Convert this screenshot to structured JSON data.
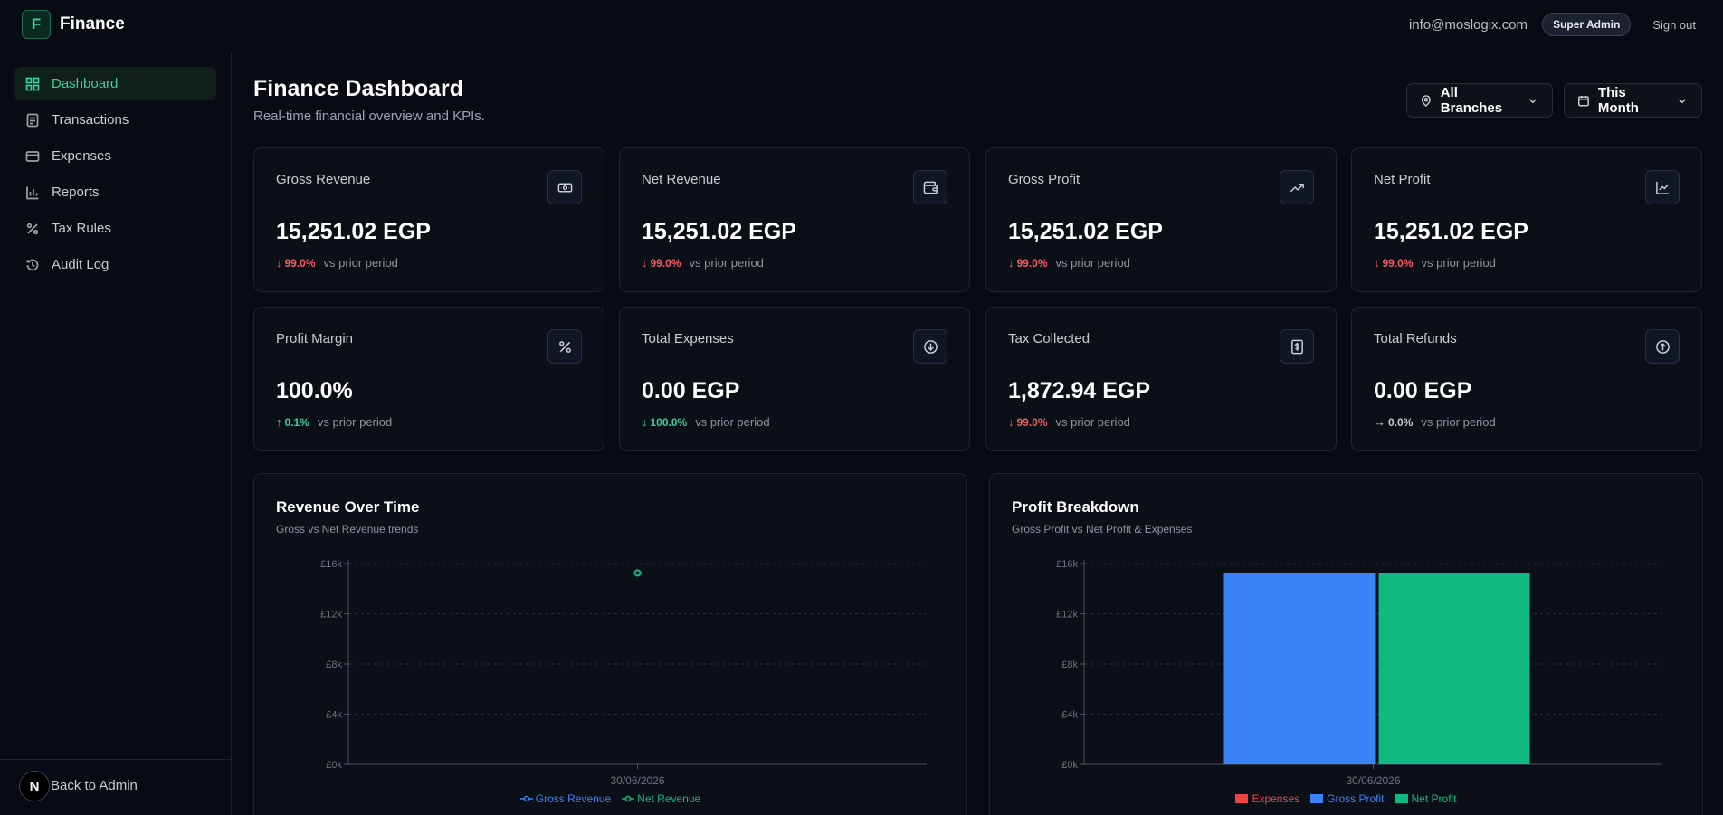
{
  "app": {
    "logo_letter": "F",
    "name": "Finance"
  },
  "header": {
    "email": "info@moslogix.com",
    "role": "Super Admin",
    "signout": "Sign out"
  },
  "sidebar": {
    "items": [
      {
        "label": "Dashboard",
        "icon": "dashboard-icon",
        "active": true
      },
      {
        "label": "Transactions",
        "icon": "receipt-icon",
        "active": false
      },
      {
        "label": "Expenses",
        "icon": "credit-card-icon",
        "active": false
      },
      {
        "label": "Reports",
        "icon": "bar-chart-icon",
        "active": false
      },
      {
        "label": "Tax Rules",
        "icon": "percent-icon",
        "active": false
      },
      {
        "label": "Audit Log",
        "icon": "history-icon",
        "active": false
      }
    ],
    "back_avatar_letter": "N",
    "back_label": "Back to Admin"
  },
  "page": {
    "title": "Finance Dashboard",
    "subtitle": "Real-time financial overview and KPIs.",
    "branch_filter": "All Branches",
    "period_filter": "This Month"
  },
  "colors": {
    "accent": "#34d399",
    "negative": "#f25f5c",
    "expenses": "#ef4444",
    "gross": "#3b82f6",
    "net": "#10b981"
  },
  "kpis": [
    {
      "title": "Gross Revenue",
      "value": "15,251.02 EGP",
      "arrow": "↓",
      "delta": "99.0%",
      "trend": "down-bad",
      "note": "vs prior period",
      "icon": "banknote-icon"
    },
    {
      "title": "Net Revenue",
      "value": "15,251.02 EGP",
      "arrow": "↓",
      "delta": "99.0%",
      "trend": "down-bad",
      "note": "vs prior period",
      "icon": "wallet-icon"
    },
    {
      "title": "Gross Profit",
      "value": "15,251.02 EGP",
      "arrow": "↓",
      "delta": "99.0%",
      "trend": "down-bad",
      "note": "vs prior period",
      "icon": "trending-up-icon"
    },
    {
      "title": "Net Profit",
      "value": "15,251.02 EGP",
      "arrow": "↓",
      "delta": "99.0%",
      "trend": "down-bad",
      "note": "vs prior period",
      "icon": "line-chart-icon"
    },
    {
      "title": "Profit Margin",
      "value": "100.0%",
      "arrow": "↑",
      "delta": "0.1%",
      "trend": "up-good",
      "note": "vs prior period",
      "icon": "percent-icon"
    },
    {
      "title": "Total Expenses",
      "value": "0.00 EGP",
      "arrow": "↓",
      "delta": "100.0%",
      "trend": "up-good",
      "note": "vs prior period",
      "icon": "arrow-down-circle-icon"
    },
    {
      "title": "Tax Collected",
      "value": "1,872.94 EGP",
      "arrow": "↓",
      "delta": "99.0%",
      "trend": "down-bad",
      "note": "vs prior period",
      "icon": "receipt-dollar-icon"
    },
    {
      "title": "Total Refunds",
      "value": "0.00 EGP",
      "arrow": "→",
      "delta": "0.0%",
      "trend": "neutral",
      "note": "vs prior period",
      "icon": "arrow-up-circle-icon"
    }
  ],
  "chart_data": [
    {
      "type": "line",
      "title": "Revenue Over Time",
      "subtitle": "Gross vs Net Revenue trends",
      "x": [
        "30/06/2026"
      ],
      "yticks": [
        "£0k",
        "£4k",
        "£8k",
        "£12k",
        "£16k"
      ],
      "ylim": [
        0,
        16000
      ],
      "series": [
        {
          "name": "Gross Revenue",
          "values": [
            15251.02
          ],
          "color": "#3b82f6"
        },
        {
          "name": "Net Revenue",
          "values": [
            15251.02
          ],
          "color": "#10b981"
        }
      ],
      "grid": true,
      "legend": "bottom"
    },
    {
      "type": "bar",
      "title": "Profit Breakdown",
      "subtitle": "Gross Profit vs Net Profit & Expenses",
      "categories": [
        "30/06/2026"
      ],
      "yticks": [
        "£0k",
        "£4k",
        "£8k",
        "£12k",
        "£16k"
      ],
      "ylim": [
        0,
        16000
      ],
      "series": [
        {
          "name": "Expenses",
          "values": [
            0
          ],
          "color": "#ef4444"
        },
        {
          "name": "Gross Profit",
          "values": [
            15251.02
          ],
          "color": "#3b82f6"
        },
        {
          "name": "Net Profit",
          "values": [
            15251.02
          ],
          "color": "#10b981"
        }
      ],
      "grid": true,
      "legend": "bottom"
    }
  ]
}
